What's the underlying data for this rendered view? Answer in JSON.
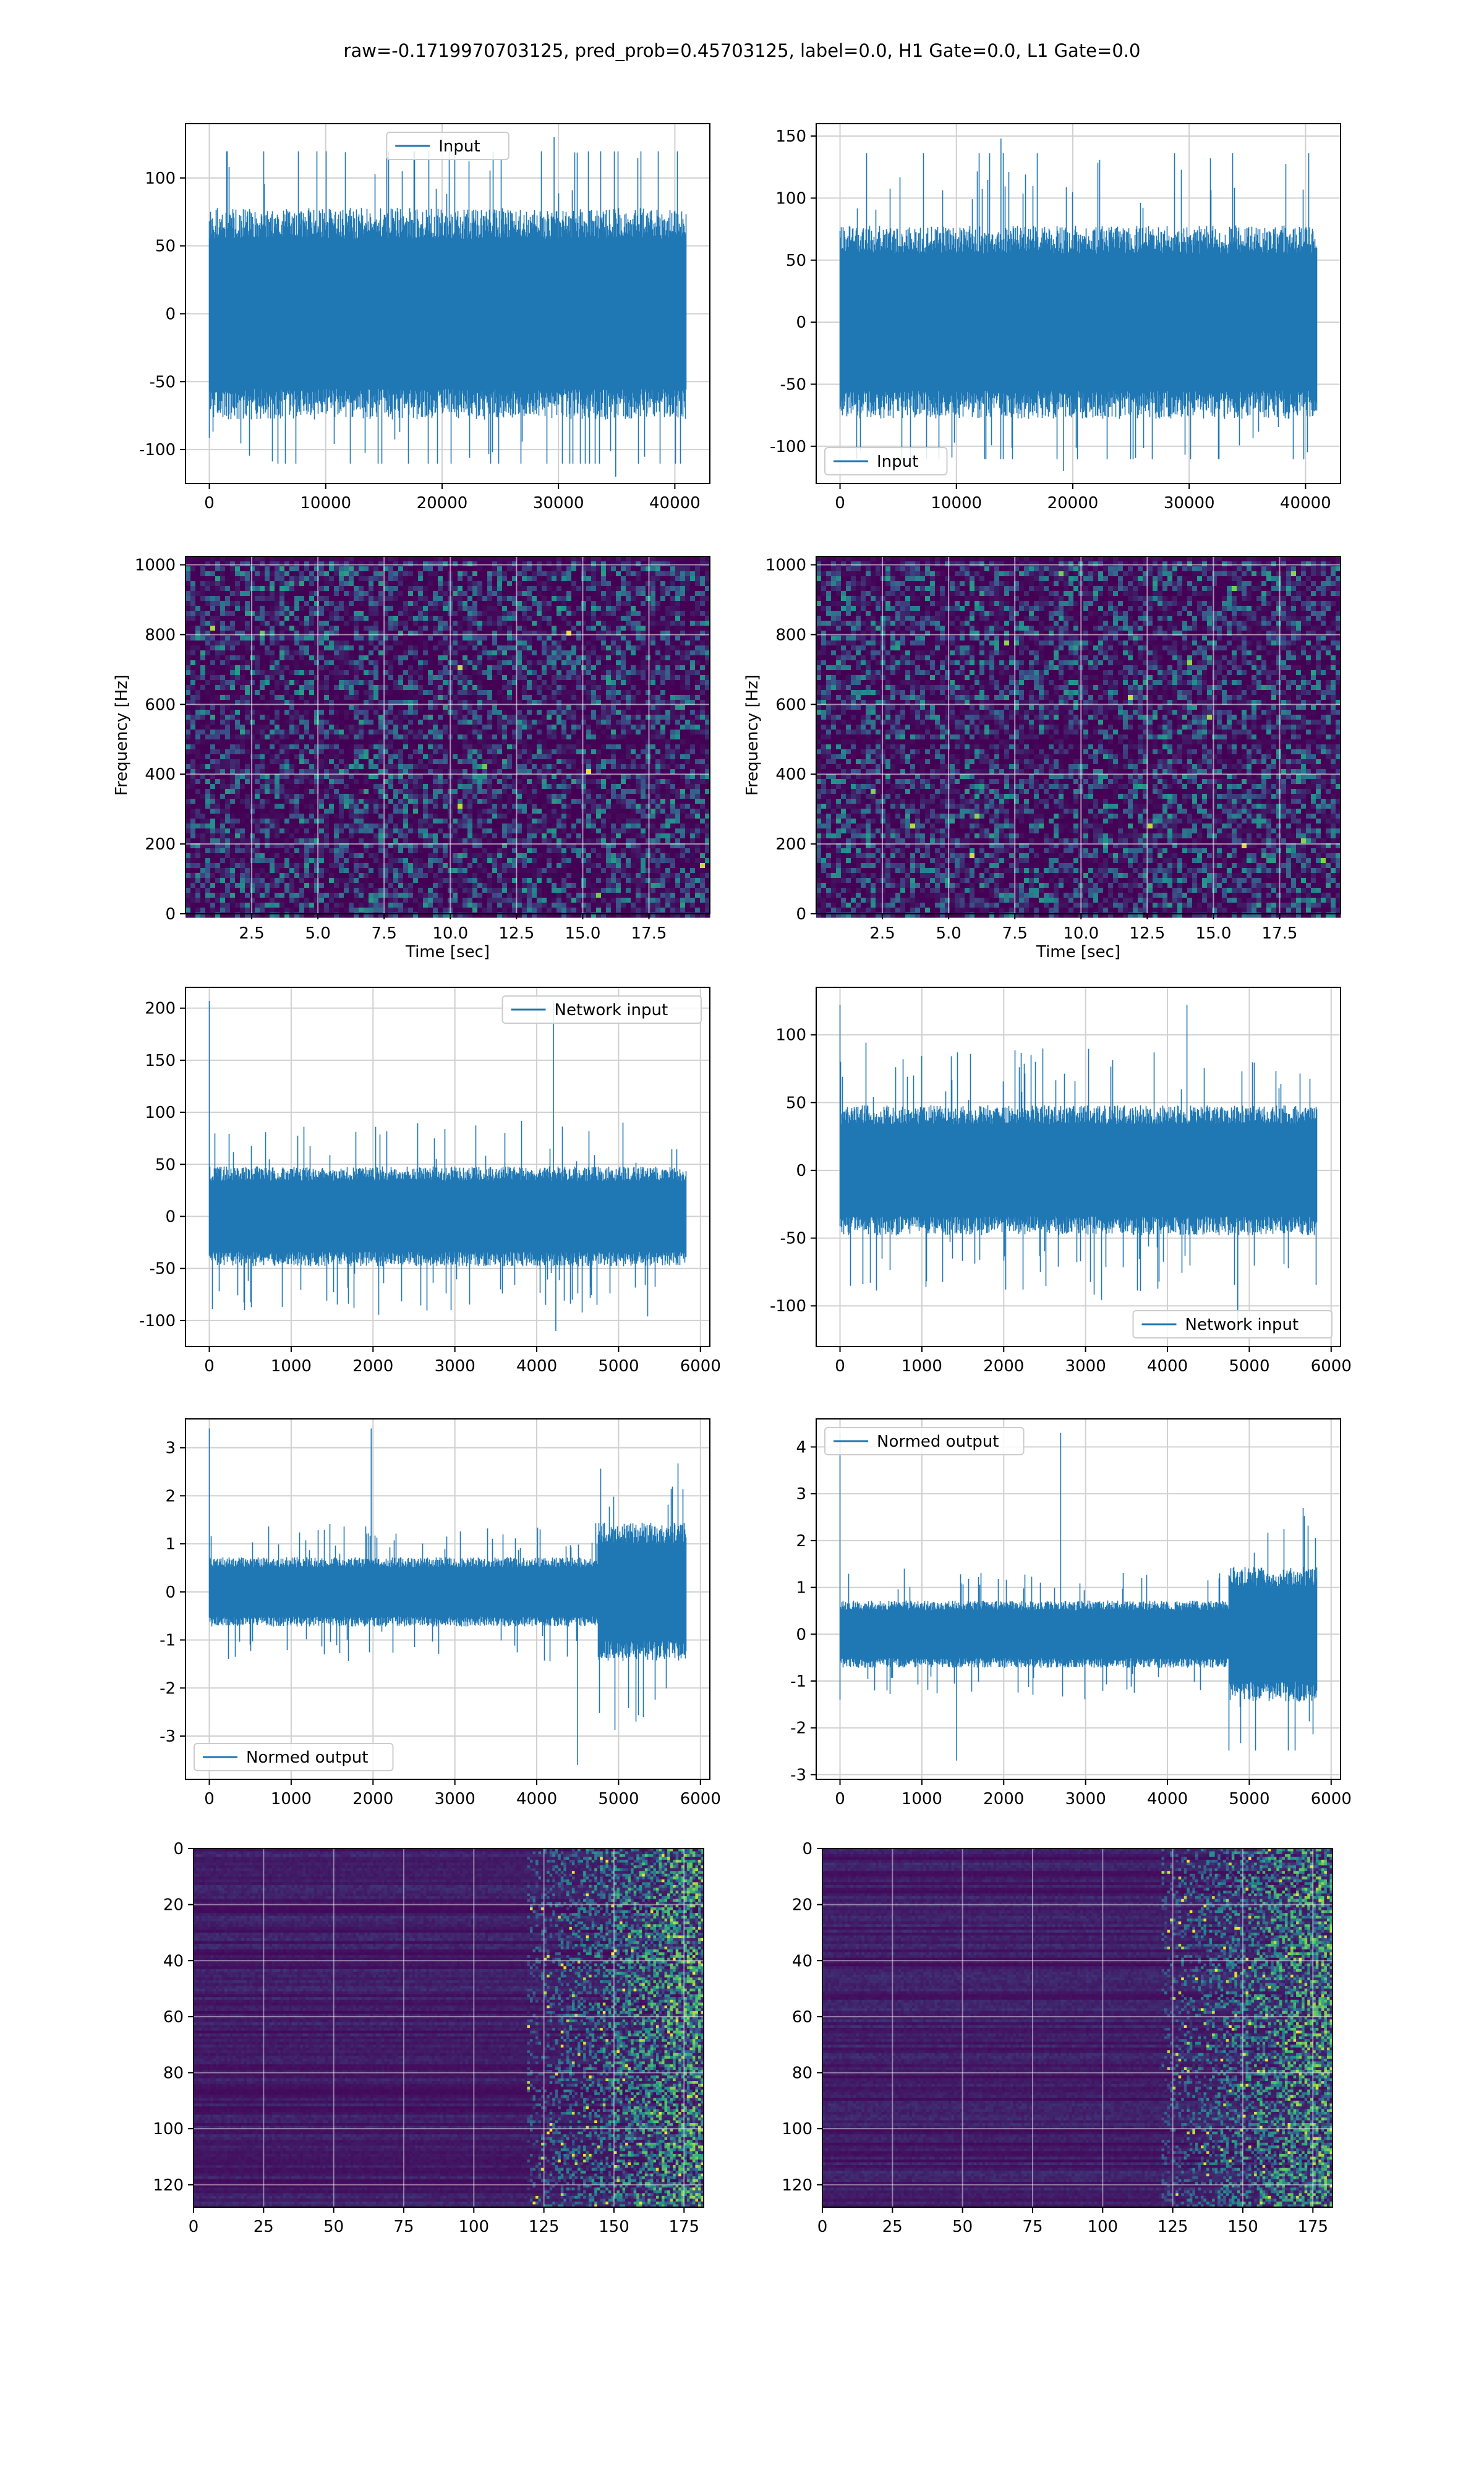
{
  "figure": {
    "title": "raw=-0.1719970703125, pred_prob=0.45703125, label=0.0, H1 Gate=0.0, L1 Gate=0.0"
  },
  "colors": {
    "line": "#1f77b4",
    "grid": "#d0d0d0",
    "axes": "#000000",
    "viridis_low": "#440154",
    "viridis_mid": "#21918c",
    "viridis_high": "#fde725"
  },
  "chart_data": [
    {
      "id": "input-h1",
      "type": "line",
      "render": "noise",
      "series": [
        {
          "name": "Input",
          "n_points": 40960
        }
      ],
      "xlim": [
        -2048,
        43008
      ],
      "ylim": [
        -125,
        140
      ],
      "xticks": [
        0,
        10000,
        20000,
        30000,
        40000
      ],
      "yticks": [
        -100,
        -50,
        0,
        50,
        100
      ],
      "legend": "upper center",
      "grid": true,
      "envelope": {
        "core_amplitude": 65,
        "peak_range": [
          -120,
          130
        ]
      }
    },
    {
      "id": "input-l1",
      "type": "line",
      "render": "noise",
      "series": [
        {
          "name": "Input",
          "n_points": 40960
        }
      ],
      "xlim": [
        -2048,
        43008
      ],
      "ylim": [
        -130,
        160
      ],
      "xticks": [
        0,
        10000,
        20000,
        30000,
        40000
      ],
      "yticks": [
        -100,
        -50,
        0,
        50,
        100,
        150
      ],
      "legend": "lower left",
      "grid": true,
      "envelope": {
        "core_amplitude": 65,
        "peak_range": [
          -120,
          148
        ]
      }
    },
    {
      "id": "spectrogram-h1",
      "type": "heatmap",
      "render": "spectrogram",
      "xlabel": "Time [sec]",
      "ylabel": "Frequency [Hz]",
      "xlim": [
        0,
        19.8
      ],
      "ylim": [
        0,
        1024
      ],
      "xticks": [
        2.5,
        5.0,
        7.5,
        10.0,
        12.5,
        15.0,
        17.5
      ],
      "yticks": [
        0,
        200,
        400,
        600,
        800,
        1000
      ],
      "grid": true
    },
    {
      "id": "spectrogram-l1",
      "type": "heatmap",
      "render": "spectrogram",
      "xlabel": "Time [sec]",
      "ylabel": "Frequency [Hz]",
      "xlim": [
        0,
        19.8
      ],
      "ylim": [
        0,
        1024
      ],
      "xticks": [
        2.5,
        5.0,
        7.5,
        10.0,
        12.5,
        15.0,
        17.5
      ],
      "yticks": [
        0,
        200,
        400,
        600,
        800,
        1000
      ],
      "grid": true
    },
    {
      "id": "network-input-h1",
      "type": "line",
      "render": "noise",
      "series": [
        {
          "name": "Network input",
          "n_points": 5824
        }
      ],
      "xlim": [
        -291,
        6115
      ],
      "ylim": [
        -125,
        220
      ],
      "xticks": [
        0,
        1000,
        2000,
        3000,
        4000,
        5000,
        6000
      ],
      "yticks": [
        -100,
        -50,
        0,
        50,
        100,
        150,
        200
      ],
      "legend": "upper right",
      "grid": true,
      "envelope": {
        "core_amplitude": 40,
        "peak_range": [
          -110,
          207
        ]
      }
    },
    {
      "id": "network-input-l1",
      "type": "line",
      "render": "noise",
      "series": [
        {
          "name": "Network input",
          "n_points": 5824
        }
      ],
      "xlim": [
        -291,
        6115
      ],
      "ylim": [
        -130,
        135
      ],
      "xticks": [
        0,
        1000,
        2000,
        3000,
        4000,
        5000,
        6000
      ],
      "yticks": [
        -100,
        -50,
        0,
        50,
        100
      ],
      "legend": "lower right",
      "grid": true,
      "envelope": {
        "core_amplitude": 40,
        "peak_range": [
          -120,
          122
        ]
      }
    },
    {
      "id": "normed-output-h1",
      "type": "line",
      "render": "noise",
      "series": [
        {
          "name": "Normed output",
          "n_points": 5824
        }
      ],
      "xlim": [
        -291,
        6115
      ],
      "ylim": [
        -3.9,
        3.6
      ],
      "xticks": [
        0,
        1000,
        2000,
        3000,
        4000,
        5000,
        6000
      ],
      "yticks": [
        -3,
        -2,
        -1,
        0,
        1,
        2,
        3
      ],
      "legend": "lower left",
      "grid": true,
      "envelope": {
        "core_amplitude": 0.6,
        "burst_start": 4750,
        "burst_amplitude": 1.2,
        "peak_range": [
          -3.6,
          3.4
        ]
      }
    },
    {
      "id": "normed-output-l1",
      "type": "line",
      "render": "noise",
      "series": [
        {
          "name": "Normed output",
          "n_points": 5824
        }
      ],
      "xlim": [
        -291,
        6115
      ],
      "ylim": [
        -3.1,
        4.6
      ],
      "xticks": [
        0,
        1000,
        2000,
        3000,
        4000,
        5000,
        6000
      ],
      "yticks": [
        -3,
        -2,
        -1,
        0,
        1,
        2,
        3,
        4
      ],
      "legend": "upper left",
      "grid": true,
      "envelope": {
        "core_amplitude": 0.6,
        "burst_start": 4750,
        "burst_amplitude": 1.2,
        "peak_range": [
          -2.7,
          4.3
        ]
      }
    },
    {
      "id": "features-h1",
      "type": "heatmap",
      "render": "features",
      "xlim": [
        0,
        182
      ],
      "ylim": [
        128,
        0
      ],
      "xticks": [
        0,
        25,
        50,
        75,
        100,
        125,
        150,
        175
      ],
      "yticks": [
        0,
        20,
        40,
        60,
        80,
        100,
        120
      ],
      "grid": true,
      "activity_start_column": 118
    },
    {
      "id": "features-l1",
      "type": "heatmap",
      "render": "features",
      "xlim": [
        0,
        182
      ],
      "ylim": [
        128,
        0
      ],
      "xticks": [
        0,
        25,
        50,
        75,
        100,
        125,
        150,
        175
      ],
      "yticks": [
        0,
        20,
        40,
        60,
        80,
        100,
        120
      ],
      "grid": true,
      "activity_start_column": 120
    }
  ]
}
